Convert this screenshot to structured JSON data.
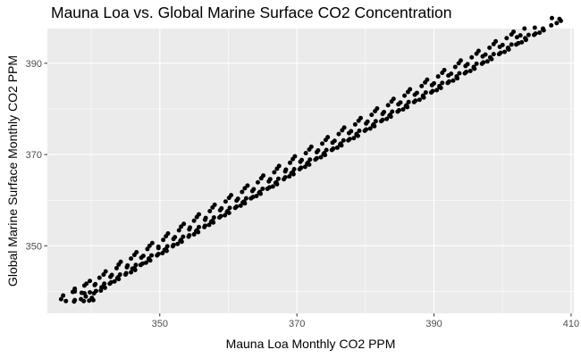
{
  "chart_data": {
    "type": "scatter",
    "title": "Mauna Loa vs. Global Marine Surface CO2 Concentration",
    "xlabel": "Mauna Loa Monthly CO2 PPM",
    "ylabel": "Global Marine Surface Monthly CO2 PPM",
    "xlim": [
      333.6,
      410.4
    ],
    "ylim": [
      335.2,
      397.6
    ],
    "x_ticks": [
      350,
      370,
      390,
      410
    ],
    "y_ticks": [
      350,
      370,
      390
    ],
    "grid": true,
    "legend": "none",
    "colors": {
      "panel": "#ebebeb",
      "grid": "#ffffff",
      "point": "#000000"
    },
    "series": [
      {
        "x": [
          337.5,
          338.9,
          339.7,
          340.3,
          340.1,
          339.0,
          337.6,
          335.9,
          335.6,
          336.3,
          337.6,
          338.5,
          339.2,
          340.4,
          341.4,
          342.0,
          341.8,
          340.5,
          339.0,
          337.6,
          337.3,
          338.6,
          339.8,
          340.7,
          341.5,
          342.7,
          343.4,
          344.0,
          343.9,
          342.8,
          341.2,
          339.8,
          339.3,
          340.6,
          341.9,
          342.9,
          343.8,
          345.0,
          345.8,
          346.4,
          346.3,
          345.2,
          343.7,
          342.1,
          341.8,
          343.0,
          344.2,
          345.1,
          346.0,
          347.2,
          348.0,
          348.6,
          348.4,
          347.3,
          345.8,
          344.3,
          344.0,
          345.3,
          346.5,
          347.5,
          348.4,
          349.6,
          350.4,
          351.0,
          350.9,
          349.8,
          348.2,
          346.6,
          346.3,
          347.6,
          348.8,
          349.8,
          350.7,
          351.9,
          352.6,
          353.2,
          353.1,
          352.0,
          350.5,
          348.9,
          348.5,
          349.8,
          351.1,
          352.0,
          353.0,
          354.2,
          355.0,
          355.6,
          355.4,
          354.3,
          352.8,
          351.2,
          350.9,
          352.2,
          353.4,
          354.3,
          355.3,
          356.5,
          357.2,
          357.8,
          357.7,
          356.6,
          355.0,
          353.5,
          353.1,
          354.4,
          355.7,
          356.6,
          357.5,
          358.7,
          359.5,
          360.1,
          359.9,
          358.8,
          357.3,
          355.7,
          355.4,
          356.7,
          357.9,
          358.9,
          359.8,
          361.0,
          361.8,
          362.4,
          362.3,
          361.2,
          359.6,
          358.0,
          357.7,
          359.0,
          360.2,
          361.2,
          362.1,
          363.3,
          364.1,
          364.7,
          364.6,
          363.5,
          362.0,
          360.4,
          360.1,
          361.4,
          362.6,
          363.6,
          364.5,
          365.7,
          366.5,
          367.1,
          367.0,
          365.9,
          364.3,
          362.8,
          362.4,
          363.7,
          365.0,
          366.0,
          366.9,
          368.1,
          368.9,
          369.5,
          369.4,
          368.3,
          366.7,
          365.1,
          364.8,
          366.1,
          367.3,
          368.3,
          369.2,
          370.4,
          371.2,
          371.8,
          371.6,
          370.5,
          369.0,
          367.4,
          367.1,
          368.4,
          369.6,
          370.6,
          371.5,
          372.7,
          373.5,
          374.1,
          374.0,
          372.9,
          371.3,
          369.7,
          369.4,
          370.7,
          371.9,
          372.9,
          373.9,
          375.1,
          375.9,
          376.5,
          376.4,
          375.2,
          373.7,
          372.1,
          371.8,
          373.1,
          374.3,
          375.3,
          376.3,
          377.5,
          378.3,
          378.9,
          378.7,
          377.6,
          376.1,
          374.5,
          374.2,
          375.5,
          376.8,
          377.7,
          378.7,
          379.9,
          380.7,
          381.3,
          381.2,
          380.1,
          378.5,
          376.9,
          376.6,
          377.9,
          379.1,
          380.1,
          381.1,
          382.3,
          383.1,
          383.7,
          383.6,
          382.5,
          380.9,
          379.3,
          379.0,
          380.3,
          381.5,
          382.5,
          383.5,
          384.7,
          385.5,
          386.1,
          386.0,
          384.8,
          383.3,
          381.7,
          381.4,
          382.7,
          383.9,
          384.9,
          385.9,
          387.1,
          387.9,
          388.5,
          388.4,
          387.2,
          385.7,
          384.1,
          383.8,
          385.1,
          386.3,
          387.3,
          388.4,
          389.6,
          390.4,
          391.0,
          390.8,
          389.7,
          388.2,
          386.5,
          386.2,
          387.5,
          388.8,
          389.8,
          390.8,
          392.0,
          392.8,
          393.4,
          393.3,
          392.1,
          390.6,
          389.0,
          388.7,
          390.0,
          391.2,
          392.2,
          393.3,
          394.5,
          395.3,
          395.9,
          395.8,
          394.6,
          393.1,
          391.5,
          391.2,
          392.5,
          393.7,
          394.7,
          395.8,
          397.0,
          397.8,
          398.4,
          398.2,
          397.1,
          395.5,
          393.9,
          393.6,
          394.9,
          396.2,
          397.2,
          398.3,
          399.5,
          400.3,
          400.9,
          400.8,
          399.6,
          398.1,
          396.5,
          396.2,
          397.5,
          398.7,
          399.7,
          400.8,
          402.0,
          402.8,
          403.4,
          403.3,
          402.1,
          400.6,
          399.0,
          398.7,
          400.0,
          401.3,
          402.3,
          403.4,
          404.6,
          405.4,
          406.0,
          405.9,
          404.7,
          403.2,
          401.6,
          401.3,
          402.6,
          403.8,
          404.8,
          405.9,
          407.1,
          407.9,
          408.5,
          408.3,
          407.2
        ],
        "y": [
          337.8,
          337.9,
          338.0,
          338.1,
          338.6,
          339.6,
          340.0,
          339.1,
          338.3,
          337.9,
          338.1,
          338.3,
          338.9,
          339.6,
          340.2,
          340.8,
          341.2,
          341.4,
          341.3,
          340.6,
          339.9,
          339.7,
          339.8,
          340.1,
          340.9,
          341.7,
          342.2,
          342.7,
          343.1,
          343.2,
          343.0,
          342.3,
          341.7,
          341.6,
          341.7,
          342.0,
          342.9,
          343.7,
          344.2,
          344.7,
          345.1,
          345.3,
          345.1,
          344.4,
          343.7,
          343.6,
          343.7,
          344.0,
          345.0,
          345.8,
          346.3,
          346.8,
          347.2,
          347.4,
          347.2,
          346.5,
          345.9,
          345.7,
          345.8,
          346.1,
          347.0,
          347.9,
          348.4,
          348.9,
          349.3,
          349.5,
          349.3,
          348.6,
          348.0,
          347.8,
          347.9,
          348.2,
          349.1,
          349.9,
          350.4,
          350.9,
          351.3,
          351.5,
          351.3,
          350.6,
          350.0,
          349.8,
          349.9,
          350.2,
          351.1,
          352.0,
          352.5,
          353.0,
          353.4,
          353.6,
          353.4,
          352.7,
          352.1,
          351.9,
          352.0,
          352.3,
          353.2,
          354.1,
          354.6,
          355.1,
          355.5,
          355.7,
          355.5,
          354.8,
          354.2,
          354.0,
          354.1,
          354.4,
          355.3,
          356.2,
          356.7,
          357.2,
          357.6,
          357.8,
          357.6,
          356.9,
          356.3,
          356.1,
          356.2,
          356.5,
          357.4,
          358.3,
          358.8,
          359.3,
          359.7,
          359.9,
          359.7,
          359.0,
          358.4,
          358.2,
          358.3,
          358.6,
          359.5,
          360.4,
          360.9,
          361.4,
          361.8,
          362.0,
          361.8,
          361.1,
          360.5,
          360.3,
          360.4,
          360.7,
          361.6,
          362.5,
          363.0,
          363.5,
          363.9,
          364.1,
          363.9,
          363.2,
          362.6,
          362.4,
          362.5,
          362.8,
          363.8,
          364.6,
          365.2,
          365.7,
          366.1,
          366.3,
          366.1,
          365.4,
          364.8,
          364.6,
          364.7,
          365.0,
          365.9,
          366.8,
          367.3,
          367.8,
          368.2,
          368.4,
          368.2,
          367.5,
          366.9,
          366.7,
          366.8,
          367.1,
          368.0,
          368.9,
          369.4,
          369.9,
          370.3,
          370.5,
          370.3,
          369.6,
          369.0,
          368.8,
          368.9,
          369.2,
          370.1,
          371.0,
          371.5,
          372.0,
          372.4,
          372.6,
          372.4,
          371.7,
          371.1,
          370.9,
          371.0,
          371.3,
          372.2,
          373.1,
          373.6,
          374.1,
          374.5,
          374.7,
          374.5,
          373.8,
          373.2,
          373.0,
          373.1,
          373.4,
          374.3,
          375.2,
          375.7,
          376.2,
          376.6,
          376.8,
          376.6,
          375.9,
          375.3,
          375.1,
          375.2,
          375.5,
          376.4,
          377.3,
          377.8,
          378.3,
          378.7,
          378.9,
          378.7,
          378.0,
          377.4,
          377.2,
          377.3,
          377.6,
          378.5,
          379.4,
          379.9,
          380.4,
          380.8,
          381.0,
          380.8,
          380.1,
          379.5,
          379.3,
          379.4,
          379.7,
          380.6,
          381.5,
          382.0,
          382.5,
          382.9,
          383.1,
          382.9,
          382.2,
          381.6,
          381.4,
          381.5,
          381.8,
          382.7,
          383.6,
          384.1,
          384.6,
          385.0,
          385.2,
          385.0,
          384.3,
          383.7,
          383.5,
          383.6,
          383.9,
          384.8,
          385.7,
          386.2,
          386.7,
          387.1,
          387.3,
          387.1,
          386.4,
          385.8,
          385.6,
          385.7,
          386.0,
          386.9,
          387.8,
          388.3,
          388.8,
          389.2,
          389.4,
          389.2,
          388.5,
          387.9,
          387.7,
          387.8,
          388.1,
          389.0,
          389.9,
          390.4,
          390.9,
          391.3,
          391.5,
          391.3,
          390.6,
          390.0,
          389.8,
          389.9,
          390.2,
          391.1,
          392.0,
          392.5,
          393.0,
          393.4,
          393.6,
          393.4,
          392.7,
          392.1,
          391.9,
          392.0,
          392.3,
          393.2,
          394.1,
          394.6,
          395.1,
          395.5,
          395.7,
          395.5,
          394.8,
          394.2,
          394.0,
          394.1,
          394.4,
          395.3,
          396.2,
          396.7,
          397.2,
          397.6,
          397.8,
          397.6,
          396.9,
          396.3,
          396.1,
          396.2,
          396.5,
          397.4,
          398.3,
          398.8,
          399.3,
          399.7,
          399.9
        ]
      }
    ]
  }
}
